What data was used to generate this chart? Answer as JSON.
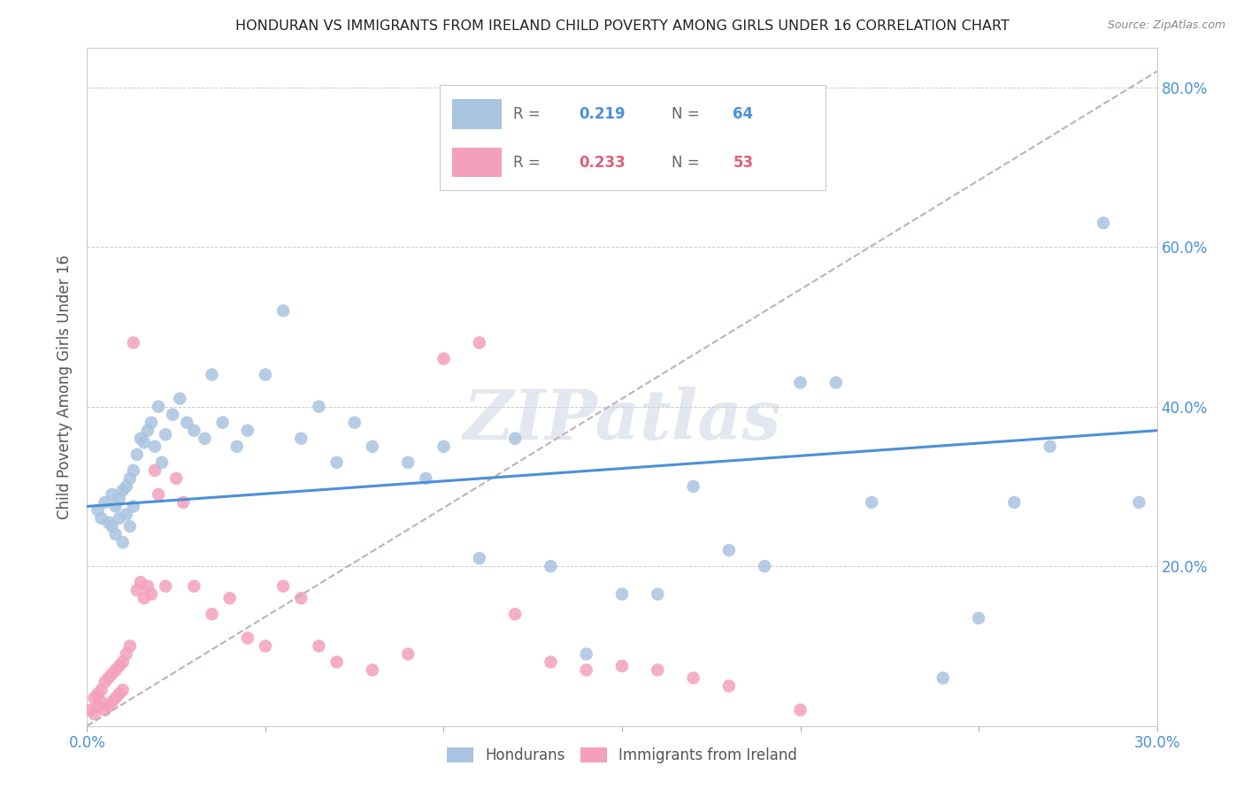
{
  "title": "HONDURAN VS IMMIGRANTS FROM IRELAND CHILD POVERTY AMONG GIRLS UNDER 16 CORRELATION CHART",
  "source": "Source: ZipAtlas.com",
  "ylabel": "Child Poverty Among Girls Under 16",
  "xlim": [
    0.0,
    0.3
  ],
  "ylim": [
    0.0,
    0.85
  ],
  "xticks": [
    0.0,
    0.05,
    0.1,
    0.15,
    0.2,
    0.25,
    0.3
  ],
  "yticks": [
    0.0,
    0.2,
    0.4,
    0.6,
    0.8
  ],
  "xtick_labels": [
    "0.0%",
    "",
    "",
    "",
    "",
    "",
    "30.0%"
  ],
  "ytick_labels": [
    "",
    "20.0%",
    "40.0%",
    "60.0%",
    "80.0%"
  ],
  "honduran_color": "#a8c4e0",
  "ireland_color": "#f4a0bc",
  "honduran_line_color": "#4a90d9",
  "ireland_line_color": "#d4a0b0",
  "honduran_R": 0.219,
  "honduran_N": 64,
  "ireland_R": 0.233,
  "ireland_N": 53,
  "legend_label_1": "Hondurans",
  "legend_label_2": "Immigrants from Ireland",
  "watermark": "ZIPatlas",
  "honduran_x": [
    0.003,
    0.004,
    0.005,
    0.006,
    0.007,
    0.007,
    0.008,
    0.008,
    0.009,
    0.009,
    0.01,
    0.01,
    0.011,
    0.011,
    0.012,
    0.012,
    0.013,
    0.013,
    0.014,
    0.015,
    0.016,
    0.017,
    0.018,
    0.019,
    0.02,
    0.021,
    0.022,
    0.024,
    0.026,
    0.028,
    0.03,
    0.033,
    0.035,
    0.038,
    0.042,
    0.045,
    0.05,
    0.055,
    0.06,
    0.065,
    0.07,
    0.075,
    0.08,
    0.09,
    0.095,
    0.1,
    0.11,
    0.12,
    0.13,
    0.14,
    0.15,
    0.16,
    0.17,
    0.18,
    0.19,
    0.2,
    0.21,
    0.22,
    0.24,
    0.25,
    0.26,
    0.27,
    0.285,
    0.295
  ],
  "honduran_y": [
    0.27,
    0.26,
    0.28,
    0.255,
    0.29,
    0.25,
    0.275,
    0.24,
    0.285,
    0.26,
    0.295,
    0.23,
    0.3,
    0.265,
    0.31,
    0.25,
    0.32,
    0.275,
    0.34,
    0.36,
    0.355,
    0.37,
    0.38,
    0.35,
    0.4,
    0.33,
    0.365,
    0.39,
    0.41,
    0.38,
    0.37,
    0.36,
    0.44,
    0.38,
    0.35,
    0.37,
    0.44,
    0.52,
    0.36,
    0.4,
    0.33,
    0.38,
    0.35,
    0.33,
    0.31,
    0.35,
    0.21,
    0.36,
    0.2,
    0.09,
    0.165,
    0.165,
    0.3,
    0.22,
    0.2,
    0.43,
    0.43,
    0.28,
    0.06,
    0.135,
    0.28,
    0.35,
    0.63,
    0.28
  ],
  "ireland_x": [
    0.001,
    0.002,
    0.002,
    0.003,
    0.003,
    0.004,
    0.004,
    0.005,
    0.005,
    0.006,
    0.006,
    0.007,
    0.007,
    0.008,
    0.008,
    0.009,
    0.009,
    0.01,
    0.01,
    0.011,
    0.012,
    0.013,
    0.014,
    0.015,
    0.016,
    0.017,
    0.018,
    0.019,
    0.02,
    0.022,
    0.025,
    0.027,
    0.03,
    0.035,
    0.04,
    0.045,
    0.05,
    0.055,
    0.06,
    0.065,
    0.07,
    0.08,
    0.09,
    0.1,
    0.11,
    0.12,
    0.13,
    0.14,
    0.15,
    0.16,
    0.17,
    0.18,
    0.2
  ],
  "ireland_y": [
    0.02,
    0.035,
    0.015,
    0.04,
    0.025,
    0.045,
    0.03,
    0.055,
    0.02,
    0.06,
    0.025,
    0.065,
    0.03,
    0.07,
    0.035,
    0.075,
    0.04,
    0.08,
    0.045,
    0.09,
    0.1,
    0.48,
    0.17,
    0.18,
    0.16,
    0.175,
    0.165,
    0.32,
    0.29,
    0.175,
    0.31,
    0.28,
    0.175,
    0.14,
    0.16,
    0.11,
    0.1,
    0.175,
    0.16,
    0.1,
    0.08,
    0.07,
    0.09,
    0.46,
    0.48,
    0.14,
    0.08,
    0.07,
    0.075,
    0.07,
    0.06,
    0.05,
    0.02
  ],
  "hon_trend_x0": 0.0,
  "hon_trend_y0": 0.275,
  "hon_trend_x1": 0.3,
  "hon_trend_y1": 0.37,
  "ire_trend_x0": 0.0,
  "ire_trend_y0": 0.0,
  "ire_trend_x1": 0.3,
  "ire_trend_y1": 0.82
}
